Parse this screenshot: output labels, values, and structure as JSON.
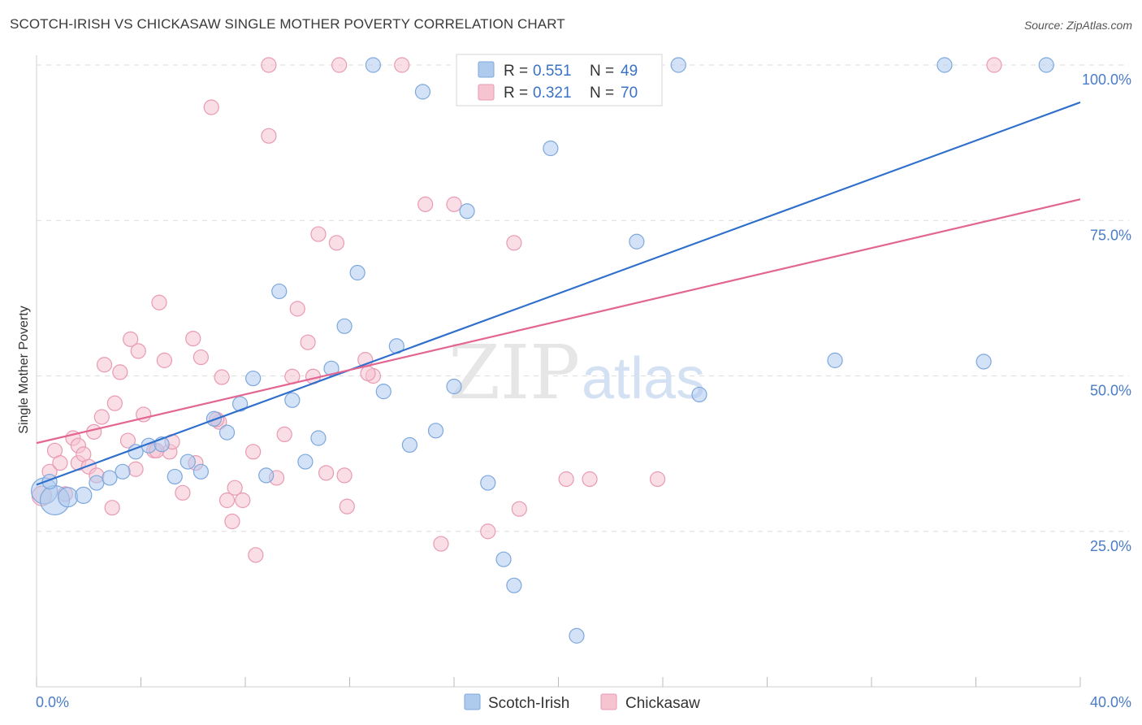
{
  "title": "SCOTCH-IRISH VS CHICKASAW SINGLE MOTHER POVERTY CORRELATION CHART",
  "source": "Source: ZipAtlas.com",
  "colors": {
    "blue_fill": "#aecbee",
    "blue_stroke": "#7da8dc",
    "blue_line": "#2f6fcc",
    "pink_fill": "#f6c3d1",
    "pink_stroke": "#e99ab2",
    "pink_line": "#e36591",
    "tick_text": "#4a7cc7",
    "grid": "#dedede"
  },
  "legend": {
    "r_label": "R =",
    "n_label": "N =",
    "rows": [
      {
        "r": "0.551",
        "n": "49",
        "series": "blue"
      },
      {
        "r": "0.321",
        "n": "70",
        "series": "pink"
      }
    ]
  },
  "watermark": {
    "zip": "ZIP",
    "atlas": "atlas"
  },
  "chart_data": {
    "type": "scatter",
    "title": "SCOTCH-IRISH VS CHICKASAW SINGLE MOTHER POVERTY CORRELATION CHART",
    "xlabel": "",
    "ylabel": "Single Mother Poverty",
    "xlim": [
      0,
      40
    ],
    "ylim": [
      0,
      105
    ],
    "x_tick_labels": [
      {
        "value": 0,
        "label": "0.0%"
      },
      {
        "value": 40,
        "label": "40.0%"
      }
    ],
    "y_tick_labels": [
      {
        "value": 25,
        "label": "25.0%"
      },
      {
        "value": 50,
        "label": "50.0%"
      },
      {
        "value": 75,
        "label": "75.0%"
      },
      {
        "value": 100,
        "label": "100.0%"
      }
    ],
    "grid": true,
    "legend_position": "top-center",
    "series": [
      {
        "name": "Scotch-Irish",
        "color": "#aecbee",
        "r": 0.551,
        "n": 49,
        "trend": {
          "x": [
            0,
            40
          ],
          "y": [
            32.5,
            94.0
          ]
        },
        "points": [
          [
            0.3,
            31.5,
            16
          ],
          [
            0.7,
            30.0,
            18
          ],
          [
            1.2,
            30.5,
            12
          ],
          [
            1.8,
            30.8,
            10
          ],
          [
            2.3,
            32.8,
            9
          ],
          [
            2.8,
            33.6,
            9
          ],
          [
            3.3,
            34.6,
            9
          ],
          [
            3.8,
            37.8,
            9
          ],
          [
            4.3,
            38.8,
            9
          ],
          [
            4.8,
            39.0,
            9
          ],
          [
            5.3,
            33.8,
            9
          ],
          [
            5.8,
            36.2,
            9
          ],
          [
            6.3,
            34.6,
            9
          ],
          [
            6.8,
            43.1,
            9
          ],
          [
            7.3,
            40.9,
            9
          ],
          [
            7.8,
            45.5,
            9
          ],
          [
            8.3,
            49.6,
            9
          ],
          [
            8.8,
            34.0,
            9
          ],
          [
            9.3,
            63.6,
            9
          ],
          [
            9.8,
            46.1,
            9
          ],
          [
            10.3,
            36.2,
            9
          ],
          [
            10.8,
            40.0,
            9
          ],
          [
            11.3,
            51.2,
            9
          ],
          [
            11.8,
            58.0,
            9
          ],
          [
            12.3,
            66.6,
            9
          ],
          [
            12.9,
            100.0,
            9
          ],
          [
            13.3,
            47.5,
            9
          ],
          [
            13.8,
            54.8,
            9
          ],
          [
            14.3,
            38.9,
            9
          ],
          [
            14.8,
            95.7,
            9
          ],
          [
            15.3,
            41.2,
            9
          ],
          [
            16.0,
            48.3,
            9
          ],
          [
            16.5,
            76.5,
            9
          ],
          [
            17.3,
            32.8,
            9
          ],
          [
            17.9,
            20.5,
            9
          ],
          [
            18.3,
            16.3,
            9
          ],
          [
            18.8,
            100.0,
            9
          ],
          [
            19.7,
            86.6,
            9
          ],
          [
            20.7,
            8.2,
            9
          ],
          [
            21.6,
            100.0,
            9
          ],
          [
            22.0,
            100.0,
            9
          ],
          [
            23.0,
            71.6,
            9
          ],
          [
            24.6,
            100.0,
            9
          ],
          [
            25.4,
            47.0,
            9
          ],
          [
            30.6,
            52.5,
            9
          ],
          [
            34.8,
            100.0,
            9
          ],
          [
            36.3,
            52.3,
            9
          ],
          [
            38.7,
            100.0,
            9
          ],
          [
            0.5,
            33.0,
            9
          ]
        ]
      },
      {
        "name": "Chickasaw",
        "color": "#f6c3d1",
        "r": 0.321,
        "n": 70,
        "trend": {
          "x": [
            0,
            40
          ],
          "y": [
            39.2,
            78.4
          ]
        },
        "points": [
          [
            0.2,
            30.7,
            12
          ],
          [
            0.5,
            34.6,
            9
          ],
          [
            0.7,
            38.0,
            9
          ],
          [
            0.9,
            36.0,
            9
          ],
          [
            1.1,
            31.0,
            9
          ],
          [
            1.4,
            40.0,
            9
          ],
          [
            1.6,
            36.0,
            9
          ],
          [
            1.6,
            38.8,
            9
          ],
          [
            1.8,
            37.4,
            9
          ],
          [
            2.0,
            35.4,
            9
          ],
          [
            2.2,
            41.0,
            9
          ],
          [
            2.3,
            34.0,
            9
          ],
          [
            2.5,
            43.4,
            9
          ],
          [
            2.6,
            51.8,
            9
          ],
          [
            2.9,
            28.8,
            9
          ],
          [
            3.0,
            45.6,
            9
          ],
          [
            3.2,
            50.6,
            9
          ],
          [
            3.5,
            39.6,
            9
          ],
          [
            3.6,
            55.9,
            9
          ],
          [
            3.8,
            35.0,
            9
          ],
          [
            3.9,
            54.0,
            9
          ],
          [
            4.1,
            43.8,
            9
          ],
          [
            4.5,
            38.0,
            9
          ],
          [
            4.7,
            61.8,
            9
          ],
          [
            4.9,
            52.5,
            9
          ],
          [
            5.1,
            37.8,
            9
          ],
          [
            5.2,
            39.4,
            9
          ],
          [
            5.6,
            31.2,
            9
          ],
          [
            6.0,
            56.0,
            9
          ],
          [
            6.1,
            36.0,
            9
          ],
          [
            6.3,
            53.0,
            9
          ],
          [
            6.7,
            93.2,
            9
          ],
          [
            7.0,
            42.6,
            9
          ],
          [
            7.1,
            49.8,
            9
          ],
          [
            7.3,
            30.0,
            9
          ],
          [
            7.5,
            26.6,
            9
          ],
          [
            7.6,
            32.0,
            9
          ],
          [
            7.9,
            30.0,
            9
          ],
          [
            8.3,
            37.8,
            9
          ],
          [
            8.4,
            21.2,
            9
          ],
          [
            8.9,
            100.0,
            9
          ],
          [
            8.9,
            88.6,
            9
          ],
          [
            9.2,
            33.6,
            9
          ],
          [
            9.5,
            40.6,
            9
          ],
          [
            9.8,
            49.9,
            9
          ],
          [
            10.0,
            60.8,
            9
          ],
          [
            10.4,
            55.4,
            9
          ],
          [
            10.6,
            49.9,
            9
          ],
          [
            10.8,
            72.8,
            9
          ],
          [
            11.1,
            34.4,
            9
          ],
          [
            11.5,
            71.4,
            9
          ],
          [
            11.6,
            100.0,
            9
          ],
          [
            11.8,
            34.0,
            9
          ],
          [
            11.9,
            29.0,
            9
          ],
          [
            12.6,
            52.6,
            9
          ],
          [
            12.9,
            50.0,
            9
          ],
          [
            14.0,
            100.0,
            9
          ],
          [
            14.9,
            77.6,
            9
          ],
          [
            15.5,
            23.0,
            9
          ],
          [
            16.0,
            77.6,
            9
          ],
          [
            17.3,
            25.0,
            9
          ],
          [
            18.3,
            71.4,
            9
          ],
          [
            18.5,
            28.6,
            9
          ],
          [
            20.3,
            33.4,
            9
          ],
          [
            21.2,
            33.4,
            9
          ],
          [
            23.8,
            33.4,
            9
          ],
          [
            36.7,
            100.0,
            9
          ],
          [
            4.6,
            38.0,
            9
          ],
          [
            12.7,
            50.4,
            9
          ],
          [
            6.9,
            43.0,
            9
          ]
        ]
      }
    ]
  }
}
